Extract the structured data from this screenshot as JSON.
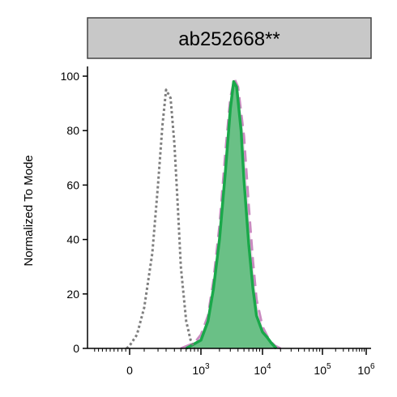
{
  "chart_data": {
    "type": "area",
    "title": "ab252668**",
    "ylabel": "Normalized To Mode",
    "xlabel": "",
    "x_scale": "biexponential",
    "ylim": [
      0,
      100
    ],
    "y_ticks": [
      0,
      20,
      40,
      60,
      80,
      100
    ],
    "x_ticks": [
      {
        "base": "0",
        "exp": ""
      },
      {
        "base": "10",
        "exp": "3"
      },
      {
        "base": "10",
        "exp": "4"
      },
      {
        "base": "10",
        "exp": "5"
      },
      {
        "base": "10",
        "exp": "6"
      }
    ],
    "grid": false,
    "series": [
      {
        "style": "dotted",
        "color": "#7f7f7f",
        "x": [
          -80,
          0,
          50,
          100,
          150,
          200,
          250,
          300,
          350,
          400,
          450,
          500,
          600,
          700,
          800
        ],
        "y": [
          0,
          1,
          5,
          15,
          35,
          60,
          82,
          95,
          92,
          75,
          52,
          30,
          10,
          3,
          0
        ]
      },
      {
        "style": "dashed",
        "color": "#c98bc0",
        "fill": "#f0d6eb",
        "x": [
          500,
          800,
          1000,
          1300,
          1600,
          2000,
          2500,
          3000,
          3500,
          4000,
          5000,
          6000,
          7000,
          8000,
          10000,
          13000,
          16000,
          20000
        ],
        "y": [
          0,
          2,
          5,
          12,
          25,
          45,
          72,
          92,
          99,
          96,
          78,
          52,
          32,
          18,
          8,
          3,
          1,
          0
        ]
      },
      {
        "style": "solid",
        "color": "#1aa84a",
        "fill": "#5bbd7a",
        "x": [
          600,
          1000,
          1300,
          1600,
          2000,
          2500,
          3000,
          3400,
          3800,
          4500,
          5000,
          6000,
          7000,
          8000,
          10000,
          12000,
          14000,
          17000
        ],
        "y": [
          0,
          3,
          10,
          22,
          40,
          65,
          88,
          98,
          96,
          80,
          62,
          38,
          22,
          12,
          6,
          4,
          2,
          0
        ]
      }
    ]
  }
}
